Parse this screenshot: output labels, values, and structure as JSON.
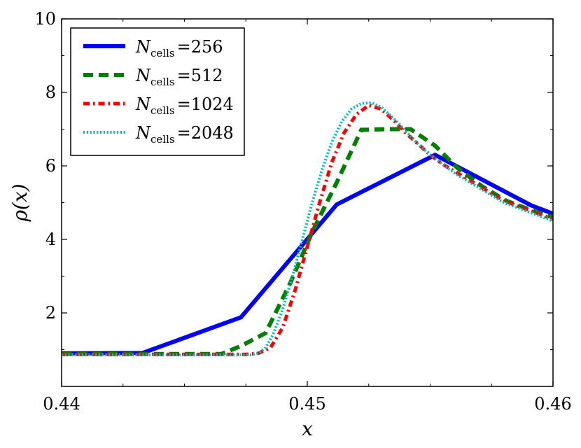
{
  "chart_data": {
    "type": "line",
    "xlabel": "x",
    "ylabel": "ρ(x)",
    "xlim": [
      0.44,
      0.46
    ],
    "ylim": [
      0,
      10
    ],
    "xticks": [
      0.44,
      0.45,
      0.46
    ],
    "xtick_labels": [
      "0.44",
      "0.45",
      "0.46"
    ],
    "yticks": [
      2,
      4,
      6,
      8,
      10
    ],
    "ytick_labels": [
      "2",
      "4",
      "6",
      "8",
      "10"
    ],
    "legend_position": "top-left",
    "series": [
      {
        "name": "N_cells=256",
        "label_main": "N",
        "label_sub": "cells",
        "label_value": "=256",
        "color": "#0000ff",
        "style": "solid",
        "x": [
          0.44,
          0.4433,
          0.4473,
          0.4512,
          0.4552,
          0.4591,
          0.46
        ],
        "y": [
          0.9,
          0.91,
          1.88,
          4.95,
          6.3,
          4.93,
          4.7
        ]
      },
      {
        "name": "N_cells=512",
        "label_main": "N",
        "label_sub": "cells",
        "label_value": "=512",
        "color": "#008000",
        "style": "dashed",
        "x": [
          0.44,
          0.4453,
          0.4465,
          0.4473,
          0.4483,
          0.4493,
          0.4502,
          0.4512,
          0.4522,
          0.4532,
          0.4542,
          0.4552,
          0.4561,
          0.4571,
          0.4581,
          0.4591,
          0.46
        ],
        "y": [
          0.88,
          0.88,
          0.88,
          1.1,
          1.45,
          2.8,
          4.2,
          5.55,
          6.98,
          7.0,
          7.0,
          6.55,
          5.95,
          5.45,
          5.05,
          4.8,
          4.6
        ]
      },
      {
        "name": "N_cells=1024",
        "label_main": "N",
        "label_sub": "cells",
        "label_value": "=1024",
        "color": "#ff0000",
        "style": "dashdot",
        "x": [
          0.44,
          0.4475,
          0.448,
          0.4485,
          0.449,
          0.4495,
          0.45,
          0.4505,
          0.451,
          0.4515,
          0.452,
          0.4525,
          0.453,
          0.4535,
          0.454,
          0.4545,
          0.455,
          0.4555,
          0.456,
          0.457,
          0.458,
          0.459,
          0.46
        ],
        "y": [
          0.87,
          0.87,
          0.9,
          1.05,
          1.6,
          2.6,
          3.8,
          5.0,
          6.1,
          6.9,
          7.4,
          7.65,
          7.55,
          7.25,
          6.9,
          6.6,
          6.3,
          6.05,
          5.85,
          5.45,
          5.05,
          4.8,
          4.55
        ]
      },
      {
        "name": "N_cells=2048",
        "label_main": "N",
        "label_sub": "cells",
        "label_value": "=2048",
        "color": "#00bfbf",
        "style": "dotted",
        "x": [
          0.44,
          0.4477,
          0.448,
          0.4483,
          0.4486,
          0.449,
          0.4494,
          0.4498,
          0.4502,
          0.4506,
          0.451,
          0.4514,
          0.4518,
          0.4522,
          0.4526,
          0.453,
          0.4535,
          0.454,
          0.4545,
          0.455,
          0.4555,
          0.456,
          0.457,
          0.458,
          0.459,
          0.46
        ],
        "y": [
          0.86,
          0.86,
          0.9,
          1.05,
          1.4,
          2.1,
          3.0,
          4.0,
          5.0,
          5.9,
          6.65,
          7.2,
          7.55,
          7.7,
          7.72,
          7.6,
          7.3,
          6.95,
          6.6,
          6.3,
          6.05,
          5.8,
          5.4,
          5.0,
          4.75,
          4.5
        ]
      }
    ]
  }
}
